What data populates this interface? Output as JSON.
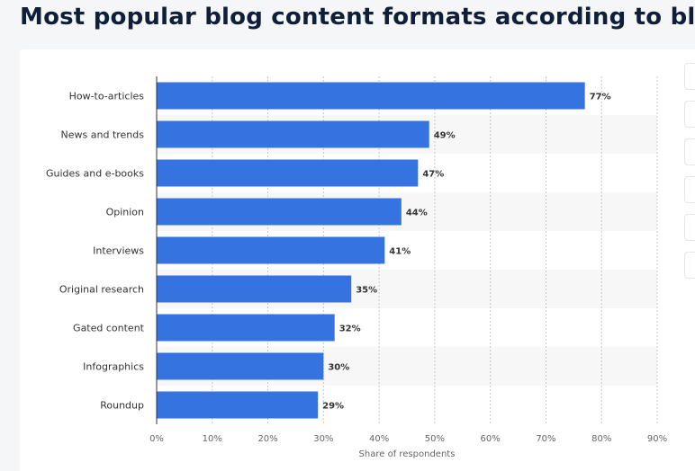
{
  "page": {
    "title": "Most popular blog content formats according to bloggers"
  },
  "colors": {
    "bar": "#3574e0",
    "band": "#f7f7f7",
    "grid": "#c7c7c7"
  },
  "chart_data": {
    "type": "bar",
    "orientation": "horizontal",
    "title": "",
    "categories": [
      "How-to-articles",
      "News and trends",
      "Guides and e-books",
      "Opinion",
      "Interviews",
      "Original research",
      "Gated content",
      "Infographics",
      "Roundup"
    ],
    "values": [
      77,
      49,
      47,
      44,
      41,
      35,
      32,
      30,
      29
    ],
    "value_labels": [
      "77%",
      "49%",
      "47%",
      "44%",
      "41%",
      "35%",
      "32%",
      "30%",
      "29%"
    ],
    "xlabel": "Share of respondents",
    "ylabel": "",
    "xlim": [
      0,
      90
    ],
    "xticks": [
      0,
      10,
      20,
      30,
      40,
      50,
      60,
      70,
      80,
      90
    ],
    "xtick_labels": [
      "0%",
      "10%",
      "20%",
      "30%",
      "40%",
      "50%",
      "60%",
      "70%",
      "80%",
      "90%"
    ],
    "grid": "vertical-dashed",
    "alternating_bands": true
  }
}
